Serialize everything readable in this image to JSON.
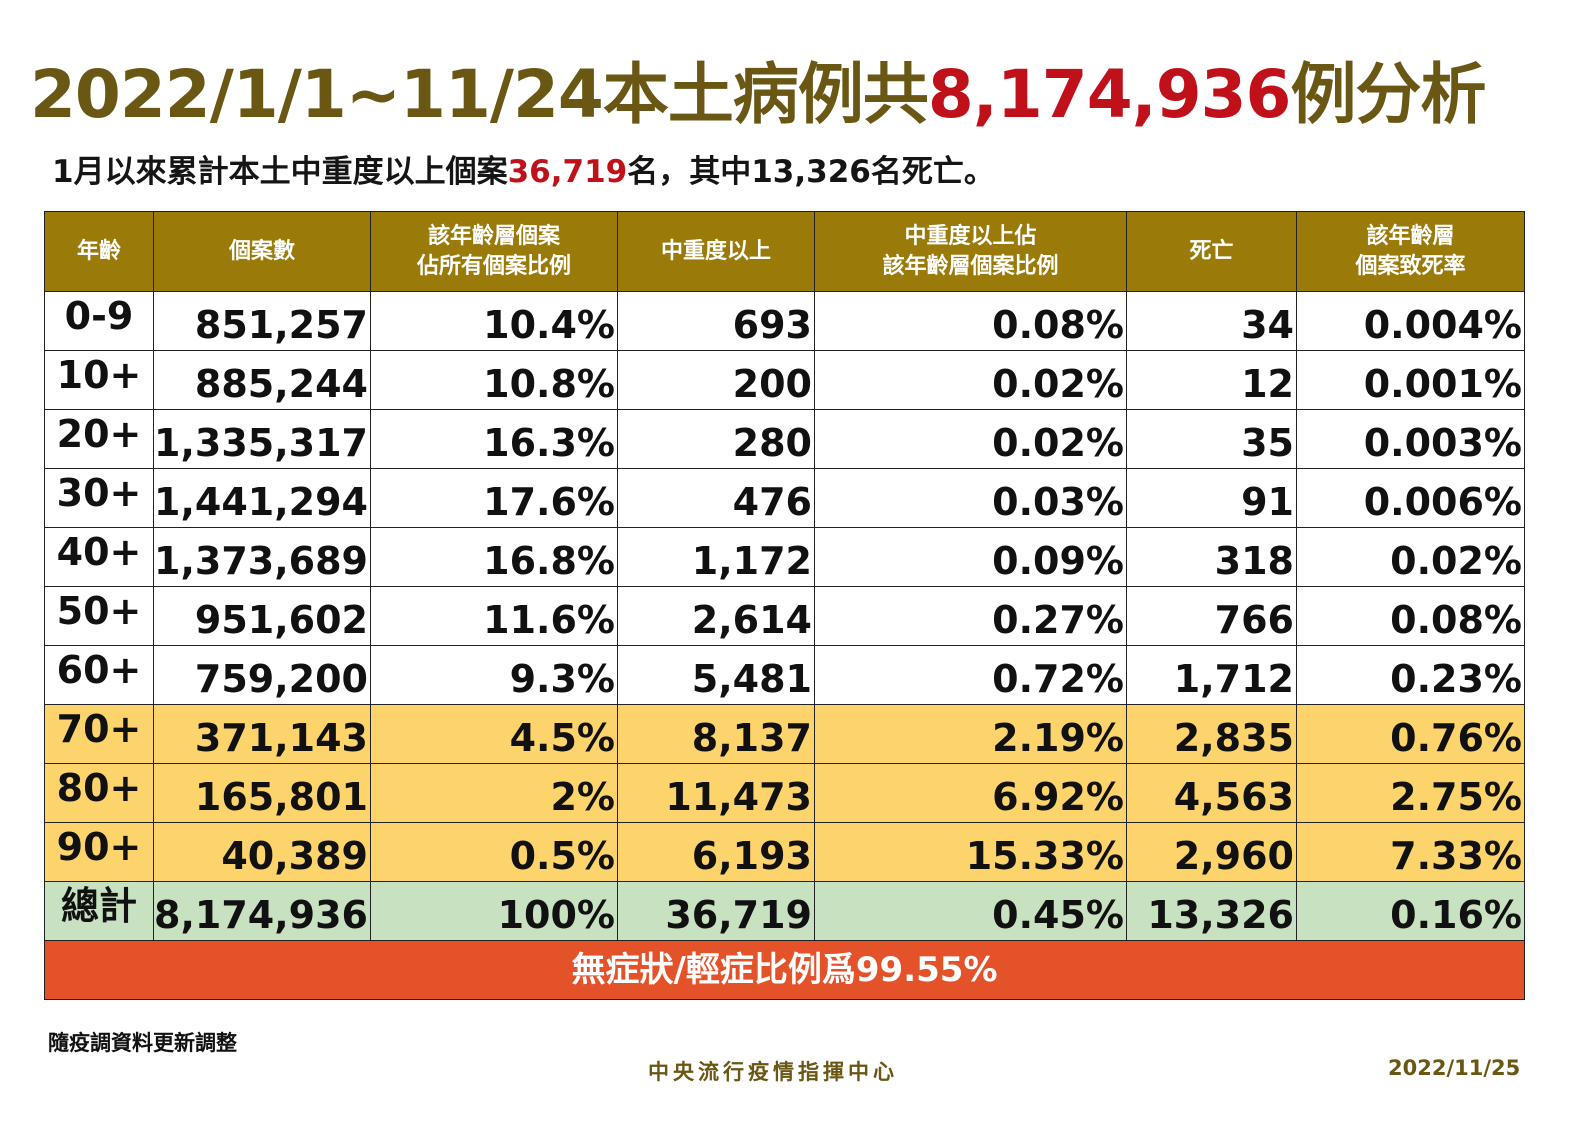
{
  "header": {
    "title_prefix": "2022/1/1~11/24本土病例共",
    "title_number": "8,174,936",
    "title_suffix": "例分析",
    "subtitle_prefix": "1月以來累計本土中重度以上個案",
    "subtitle_number": "36,719",
    "subtitle_suffix": "名，其中13,326名死亡。"
  },
  "table": {
    "columns": [
      "年齡",
      "個案數",
      "該年齡層個案\n佔所有個案比例",
      "中重度以上",
      "中重度以上佔\n該年齡層個案比例",
      "死亡",
      "該年齡層\n個案致死率"
    ],
    "rows": [
      [
        "0-9",
        "851,257",
        "10.4%",
        "693",
        "0.08%",
        "34",
        "0.004%"
      ],
      [
        "10+",
        "885,244",
        "10.8%",
        "200",
        "0.02%",
        "12",
        "0.001%"
      ],
      [
        "20+",
        "1,335,317",
        "16.3%",
        "280",
        "0.02%",
        "35",
        "0.003%"
      ],
      [
        "30+",
        "1,441,294",
        "17.6%",
        "476",
        "0.03%",
        "91",
        "0.006%"
      ],
      [
        "40+",
        "1,373,689",
        "16.8%",
        "1,172",
        "0.09%",
        "318",
        "0.02%"
      ],
      [
        "50+",
        "951,602",
        "11.6%",
        "2,614",
        "0.27%",
        "766",
        "0.08%"
      ],
      [
        "60+",
        "759,200",
        "9.3%",
        "5,481",
        "0.72%",
        "1,712",
        "0.23%"
      ],
      [
        "70+",
        "371,143",
        "4.5%",
        "8,137",
        "2.19%",
        "2,835",
        "0.76%"
      ],
      [
        "80+",
        "165,801",
        "2%",
        "11,473",
        "6.92%",
        "4,563",
        "2.75%"
      ],
      [
        "90+",
        "40,389",
        "0.5%",
        "6,193",
        "15.33%",
        "2,960",
        "7.33%"
      ]
    ],
    "total": [
      "總計",
      "8,174,936",
      "100%",
      "36,719",
      "0.45%",
      "13,326",
      "0.16%"
    ],
    "footer": "無症狀/輕症比例爲99.55%"
  },
  "note": "隨疫調資料更新調整",
  "org": "中央流行疫情指揮中心",
  "date": "2022/11/25",
  "colors": {
    "header_bg": "#9a7b0a",
    "title_brown": "#6b5714",
    "highlight_red": "#c0101a",
    "elderly_rows": "#fdd46b",
    "total_row": "#c7e1c1",
    "footer_bg": "#e4522a"
  }
}
